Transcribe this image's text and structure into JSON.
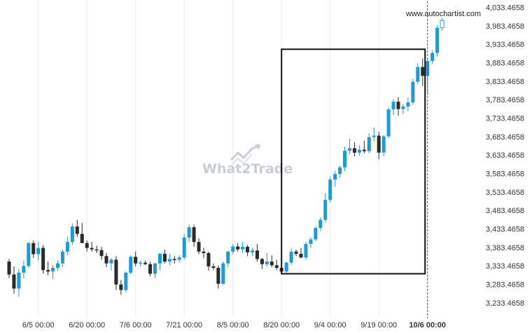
{
  "chart_data": {
    "type": "candlestick",
    "watermark": "What2Trade",
    "source_credit": "www.autochartist.com",
    "ylim": [
      3218.0,
      4042.0
    ],
    "y_ticks": [
      3233.4658,
      3283.4658,
      3333.4658,
      3383.4658,
      3433.4658,
      3483.4658,
      3533.4658,
      3583.4658,
      3633.4658,
      3683.4658,
      3733.4658,
      3783.4658,
      3833.4658,
      3883.4658,
      3933.4658,
      3983.4658,
      4033.4658
    ],
    "y_tick_labels": [
      "3,233.4658",
      "3,283.4658",
      "3,333.4658",
      "3,383.4658",
      "3,433.4658",
      "3,483.4658",
      "3,533.4658",
      "3,583.4658",
      "3,633.4658",
      "3,683.4658",
      "3,733.4658",
      "3,783.4658",
      "3,833.4658",
      "3,883.4658",
      "3,933.4658",
      "3,983.4658",
      "4,033.4658"
    ],
    "x_ticks": [
      {
        "index": 6,
        "label": "6/5 00:00"
      },
      {
        "index": 16,
        "label": "6/20 00:00"
      },
      {
        "index": 26,
        "label": "7/6 00:00"
      },
      {
        "index": 36,
        "label": "7/21 00:00"
      },
      {
        "index": 46,
        "label": "8/5 00:00"
      },
      {
        "index": 56,
        "label": "8/20 00:00"
      },
      {
        "index": 66,
        "label": "9/4 00:00"
      },
      {
        "index": 76,
        "label": "9/19 00:00"
      },
      {
        "index": 86,
        "label": "10/6 00:00",
        "bold": true
      }
    ],
    "rectangle": {
      "start_index": 56,
      "end_index": 85.5,
      "low": 3312.0,
      "high": 3920.0
    },
    "current_time_index": 86,
    "colors": {
      "up": "#1e9ad8",
      "down": "#2a2a2a",
      "rectangle": "#111111",
      "current_line": "#555555",
      "watermark": "#c9ced6"
    },
    "grid": "vertical",
    "candles": [
      {
        "o": 3345,
        "h": 3352,
        "l": 3300,
        "c": 3310
      },
      {
        "o": 3310,
        "h": 3332,
        "l": 3258,
        "c": 3272
      },
      {
        "o": 3272,
        "h": 3325,
        "l": 3250,
        "c": 3315
      },
      {
        "o": 3315,
        "h": 3348,
        "l": 3300,
        "c": 3333
      },
      {
        "o": 3333,
        "h": 3398,
        "l": 3328,
        "c": 3395
      },
      {
        "o": 3395,
        "h": 3402,
        "l": 3355,
        "c": 3365
      },
      {
        "o": 3365,
        "h": 3398,
        "l": 3348,
        "c": 3382
      },
      {
        "o": 3382,
        "h": 3390,
        "l": 3312,
        "c": 3322
      },
      {
        "o": 3322,
        "h": 3345,
        "l": 3308,
        "c": 3318
      },
      {
        "o": 3318,
        "h": 3336,
        "l": 3298,
        "c": 3328
      },
      {
        "o": 3328,
        "h": 3348,
        "l": 3320,
        "c": 3340
      },
      {
        "o": 3340,
        "h": 3378,
        "l": 3330,
        "c": 3372
      },
      {
        "o": 3372,
        "h": 3412,
        "l": 3362,
        "c": 3398
      },
      {
        "o": 3398,
        "h": 3448,
        "l": 3390,
        "c": 3440
      },
      {
        "o": 3440,
        "h": 3458,
        "l": 3412,
        "c": 3420
      },
      {
        "o": 3420,
        "h": 3450,
        "l": 3400,
        "c": 3395
      },
      {
        "o": 3395,
        "h": 3402,
        "l": 3372,
        "c": 3382
      },
      {
        "o": 3382,
        "h": 3398,
        "l": 3372,
        "c": 3378
      },
      {
        "o": 3378,
        "h": 3388,
        "l": 3368,
        "c": 3376
      },
      {
        "o": 3376,
        "h": 3385,
        "l": 3350,
        "c": 3360
      },
      {
        "o": 3360,
        "h": 3368,
        "l": 3330,
        "c": 3340
      },
      {
        "o": 3340,
        "h": 3355,
        "l": 3320,
        "c": 3350
      },
      {
        "o": 3350,
        "h": 3360,
        "l": 3268,
        "c": 3283
      },
      {
        "o": 3283,
        "h": 3295,
        "l": 3255,
        "c": 3268
      },
      {
        "o": 3268,
        "h": 3318,
        "l": 3262,
        "c": 3315
      },
      {
        "o": 3315,
        "h": 3362,
        "l": 3310,
        "c": 3358
      },
      {
        "o": 3358,
        "h": 3372,
        "l": 3332,
        "c": 3340
      },
      {
        "o": 3340,
        "h": 3348,
        "l": 3332,
        "c": 3342
      },
      {
        "o": 3342,
        "h": 3348,
        "l": 3335,
        "c": 3338
      },
      {
        "o": 3338,
        "h": 3345,
        "l": 3305,
        "c": 3312
      },
      {
        "o": 3312,
        "h": 3342,
        "l": 3300,
        "c": 3340
      },
      {
        "o": 3340,
        "h": 3368,
        "l": 3322,
        "c": 3366
      },
      {
        "o": 3366,
        "h": 3378,
        "l": 3340,
        "c": 3345
      },
      {
        "o": 3345,
        "h": 3365,
        "l": 3335,
        "c": 3352
      },
      {
        "o": 3352,
        "h": 3360,
        "l": 3340,
        "c": 3350
      },
      {
        "o": 3350,
        "h": 3362,
        "l": 3343,
        "c": 3356
      },
      {
        "o": 3356,
        "h": 3420,
        "l": 3350,
        "c": 3410
      },
      {
        "o": 3410,
        "h": 3445,
        "l": 3398,
        "c": 3438
      },
      {
        "o": 3438,
        "h": 3445,
        "l": 3385,
        "c": 3398
      },
      {
        "o": 3398,
        "h": 3408,
        "l": 3365,
        "c": 3372
      },
      {
        "o": 3372,
        "h": 3382,
        "l": 3355,
        "c": 3368
      },
      {
        "o": 3368,
        "h": 3372,
        "l": 3320,
        "c": 3332
      },
      {
        "o": 3332,
        "h": 3340,
        "l": 3322,
        "c": 3328
      },
      {
        "o": 3328,
        "h": 3335,
        "l": 3272,
        "c": 3285
      },
      {
        "o": 3285,
        "h": 3345,
        "l": 3282,
        "c": 3340
      },
      {
        "o": 3340,
        "h": 3375,
        "l": 3330,
        "c": 3372
      },
      {
        "o": 3372,
        "h": 3392,
        "l": 3365,
        "c": 3386
      },
      {
        "o": 3386,
        "h": 3395,
        "l": 3372,
        "c": 3378
      },
      {
        "o": 3378,
        "h": 3398,
        "l": 3368,
        "c": 3385
      },
      {
        "o": 3385,
        "h": 3390,
        "l": 3360,
        "c": 3370
      },
      {
        "o": 3370,
        "h": 3382,
        "l": 3360,
        "c": 3375
      },
      {
        "o": 3375,
        "h": 3392,
        "l": 3345,
        "c": 3352
      },
      {
        "o": 3352,
        "h": 3355,
        "l": 3325,
        "c": 3338
      },
      {
        "o": 3338,
        "h": 3368,
        "l": 3332,
        "c": 3345
      },
      {
        "o": 3345,
        "h": 3362,
        "l": 3330,
        "c": 3335
      },
      {
        "o": 3335,
        "h": 3350,
        "l": 3322,
        "c": 3328
      },
      {
        "o": 3328,
        "h": 3340,
        "l": 3314,
        "c": 3318
      },
      {
        "o": 3318,
        "h": 3345,
        "l": 3312,
        "c": 3342
      },
      {
        "o": 3342,
        "h": 3380,
        "l": 3336,
        "c": 3372
      },
      {
        "o": 3372,
        "h": 3378,
        "l": 3360,
        "c": 3366
      },
      {
        "o": 3366,
        "h": 3382,
        "l": 3354,
        "c": 3356
      },
      {
        "o": 3356,
        "h": 3398,
        "l": 3350,
        "c": 3393
      },
      {
        "o": 3393,
        "h": 3410,
        "l": 3382,
        "c": 3405
      },
      {
        "o": 3405,
        "h": 3440,
        "l": 3400,
        "c": 3436
      },
      {
        "o": 3436,
        "h": 3465,
        "l": 3428,
        "c": 3458
      },
      {
        "o": 3458,
        "h": 3530,
        "l": 3450,
        "c": 3512
      },
      {
        "o": 3512,
        "h": 3575,
        "l": 3505,
        "c": 3567
      },
      {
        "o": 3567,
        "h": 3590,
        "l": 3548,
        "c": 3582
      },
      {
        "o": 3582,
        "h": 3605,
        "l": 3572,
        "c": 3600
      },
      {
        "o": 3600,
        "h": 3656,
        "l": 3590,
        "c": 3645
      },
      {
        "o": 3645,
        "h": 3678,
        "l": 3636,
        "c": 3652
      },
      {
        "o": 3652,
        "h": 3668,
        "l": 3630,
        "c": 3640
      },
      {
        "o": 3640,
        "h": 3660,
        "l": 3632,
        "c": 3648
      },
      {
        "o": 3648,
        "h": 3672,
        "l": 3638,
        "c": 3644
      },
      {
        "o": 3644,
        "h": 3692,
        "l": 3638,
        "c": 3682
      },
      {
        "o": 3682,
        "h": 3708,
        "l": 3672,
        "c": 3686
      },
      {
        "o": 3686,
        "h": 3696,
        "l": 3622,
        "c": 3640
      },
      {
        "o": 3640,
        "h": 3688,
        "l": 3630,
        "c": 3684
      },
      {
        "o": 3684,
        "h": 3762,
        "l": 3678,
        "c": 3757
      },
      {
        "o": 3757,
        "h": 3785,
        "l": 3742,
        "c": 3778
      },
      {
        "o": 3778,
        "h": 3790,
        "l": 3740,
        "c": 3758
      },
      {
        "o": 3758,
        "h": 3772,
        "l": 3745,
        "c": 3765
      },
      {
        "o": 3765,
        "h": 3790,
        "l": 3752,
        "c": 3776
      },
      {
        "o": 3776,
        "h": 3840,
        "l": 3770,
        "c": 3832
      },
      {
        "o": 3832,
        "h": 3882,
        "l": 3825,
        "c": 3872
      },
      {
        "o": 3872,
        "h": 3895,
        "l": 3820,
        "c": 3848
      },
      {
        "o": 3848,
        "h": 3895,
        "l": 3802,
        "c": 3888
      },
      {
        "o": 3888,
        "h": 3918,
        "l": 3880,
        "c": 3910
      },
      {
        "o": 3910,
        "h": 3985,
        "l": 3900,
        "c": 3978
      },
      {
        "o": 3978,
        "h": 4005,
        "l": 3970,
        "c": 3998
      }
    ]
  }
}
